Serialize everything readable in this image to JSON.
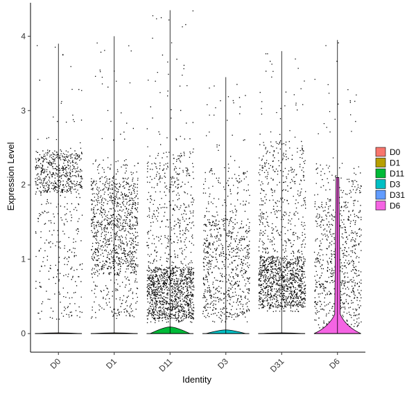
{
  "chart_data": {
    "type": "violin",
    "xlabel": "Identity",
    "ylabel": "Expression Level",
    "ylim": [
      -0.25,
      4.45
    ],
    "yticks": [
      0,
      1,
      2,
      3,
      4
    ],
    "categories": [
      "D0",
      "D1",
      "D11",
      "D3",
      "D31",
      "D6"
    ],
    "grid": false,
    "legend": {
      "placement": "right",
      "entries": [
        {
          "name": "D0",
          "color": "#F8766D"
        },
        {
          "name": "D1",
          "color": "#B79F00"
        },
        {
          "name": "D11",
          "color": "#00BA38"
        },
        {
          "name": "D3",
          "color": "#00BFC4"
        },
        {
          "name": "D31",
          "color": "#619CFF"
        },
        {
          "name": "D6",
          "color": "#F564E3"
        }
      ]
    },
    "groups": [
      {
        "name": "D0",
        "color": "#F8766D",
        "max": 3.9,
        "violin_peak_height": 0.01,
        "points": {
          "count": 750,
          "band": [
            0.2,
            2.5
          ],
          "dense": [
            1.9,
            2.45
          ],
          "tail_max": 3.9
        }
      },
      {
        "name": "D1",
        "color": "#B79F00",
        "max": 4.0,
        "violin_peak_height": 0.01,
        "points": {
          "count": 1100,
          "band": [
            0.2,
            2.35
          ],
          "dense": [
            0.8,
            2.1
          ],
          "tail_max": 4.0
        }
      },
      {
        "name": "D11",
        "color": "#00BA38",
        "max": 4.35,
        "violin_peak_height": 0.09,
        "points": {
          "count": 1500,
          "band": [
            0.15,
            2.45
          ],
          "dense": [
            0.2,
            0.9
          ],
          "tail_max": 4.35
        }
      },
      {
        "name": "D3",
        "color": "#00BFC4",
        "max": 3.45,
        "violin_peak_height": 0.05,
        "points": {
          "count": 800,
          "band": [
            0.15,
            2.25
          ],
          "dense": [
            0.2,
            1.6
          ],
          "tail_max": 3.45
        }
      },
      {
        "name": "D31",
        "color": "#619CFF",
        "max": 3.8,
        "violin_peak_height": 0.01,
        "points": {
          "count": 1400,
          "band": [
            0.3,
            2.6
          ],
          "dense": [
            0.35,
            1.05
          ],
          "tail_max": 3.8
        }
      },
      {
        "name": "D6",
        "color": "#F564E3",
        "max": 3.95,
        "violin_peak_height": 2.1,
        "points": {
          "count": 800,
          "band": [
            0.05,
            2.3
          ],
          "dense": [
            0.1,
            1.8
          ],
          "tail_max": 3.95
        }
      }
    ]
  }
}
